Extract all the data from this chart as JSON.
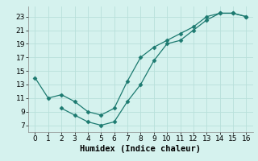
{
  "line1_x": [
    0,
    1,
    2,
    3,
    4,
    5,
    6,
    7,
    8,
    9,
    10,
    11,
    12,
    13,
    14,
    15,
    16
  ],
  "line1_y": [
    14,
    11,
    11.5,
    10.5,
    9.0,
    8.5,
    9.5,
    13.5,
    17.0,
    18.5,
    19.5,
    20.5,
    21.5,
    23.0,
    23.5,
    23.5,
    23.0
  ],
  "line2_x": [
    2,
    3,
    4,
    5,
    6,
    7,
    8,
    9,
    10,
    11,
    12,
    13,
    14,
    15,
    16
  ],
  "line2_y": [
    9.5,
    8.5,
    7.5,
    7.0,
    7.5,
    10.5,
    13.0,
    16.5,
    19.0,
    19.5,
    21.0,
    22.5,
    23.5,
    23.5,
    23.0
  ],
  "line_color": "#1c7a70",
  "marker": "D",
  "marker_size": 2.5,
  "xlabel": "Humidex (Indice chaleur)",
  "xlim": [
    -0.5,
    16.5
  ],
  "ylim": [
    6.0,
    24.5
  ],
  "xticks": [
    0,
    1,
    2,
    3,
    4,
    5,
    6,
    7,
    8,
    9,
    10,
    11,
    12,
    13,
    14,
    15,
    16
  ],
  "yticks": [
    7,
    9,
    11,
    13,
    15,
    17,
    19,
    21,
    23
  ],
  "bg_color": "#d5f2ee",
  "grid_color": "#b8e0da",
  "tick_fontsize": 6.5,
  "xlabel_fontsize": 7.5,
  "linewidth": 0.9
}
